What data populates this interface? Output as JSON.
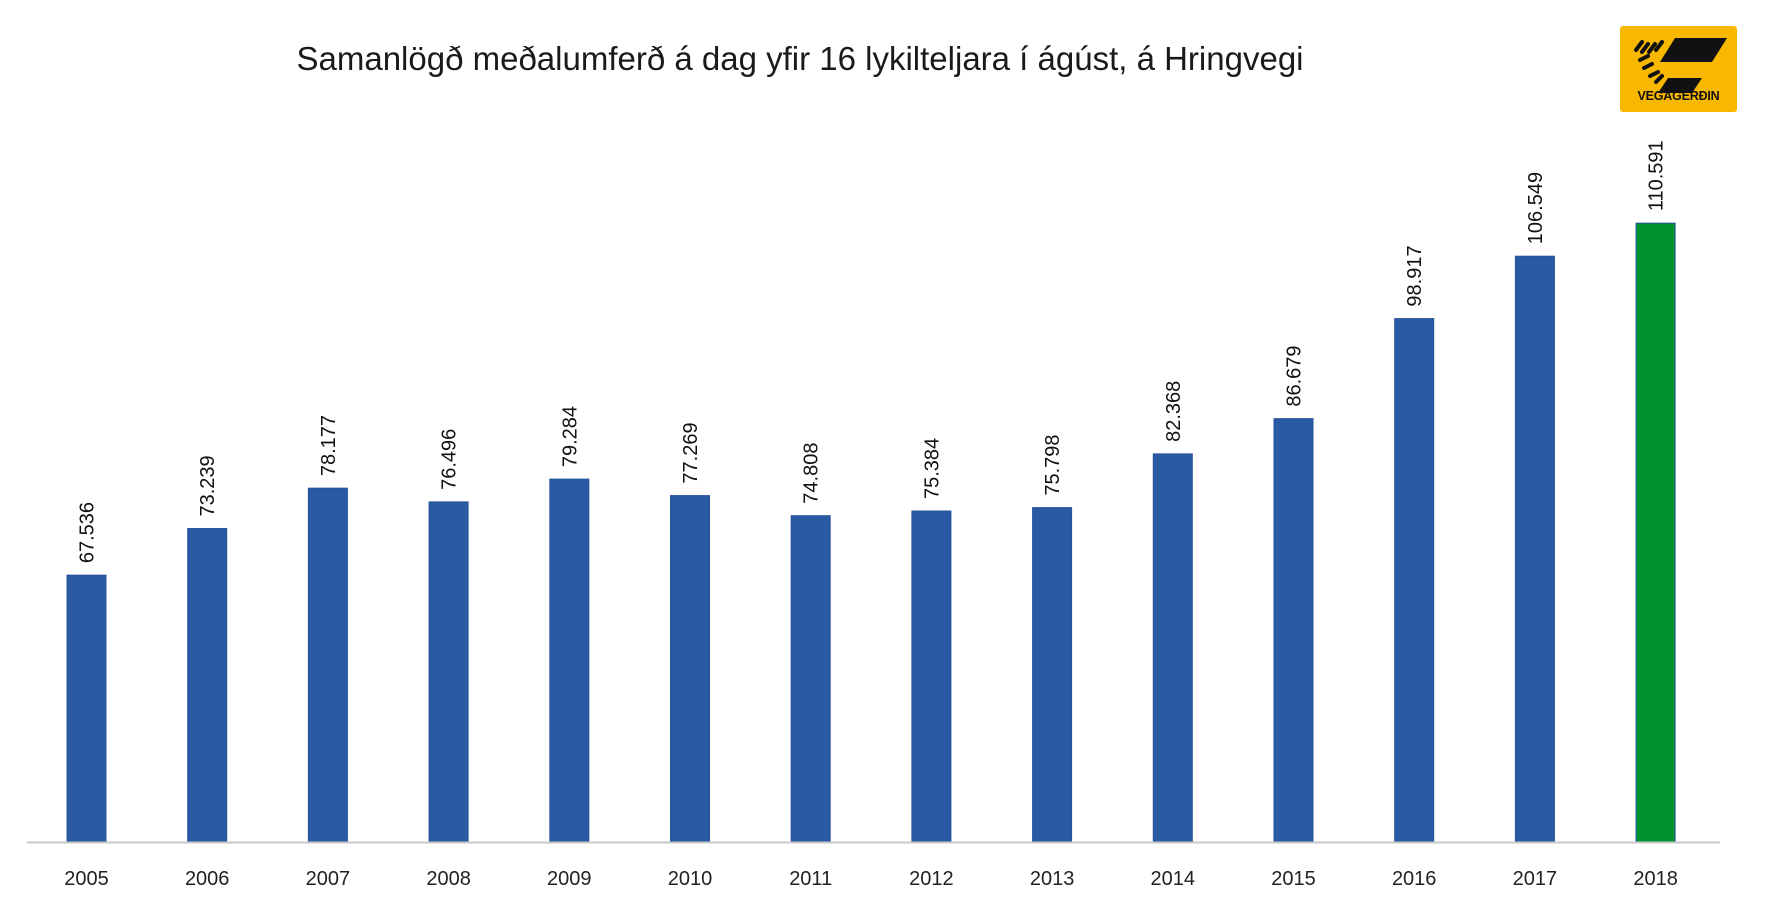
{
  "chart_data": {
    "type": "bar",
    "title": "Samanlögð meðalumferð á dag yfir 16 lykilteljara í  ágúst, á Hringvegi",
    "xlabel": "",
    "ylabel": "",
    "categories": [
      "2005",
      "2006",
      "2007",
      "2008",
      "2009",
      "2010",
      "2011",
      "2012",
      "2013",
      "2014",
      "2015",
      "2016",
      "2017",
      "2018"
    ],
    "values": [
      67.536,
      73.239,
      78.177,
      76.496,
      79.284,
      77.269,
      74.808,
      75.384,
      75.798,
      82.368,
      86.679,
      98.917,
      106.549,
      110.591
    ],
    "labels": [
      "67.536",
      "73.239",
      "78.177",
      "76.496",
      "79.284",
      "77.269",
      "74.808",
      "75.384",
      "75.798",
      "82.368",
      "86.679",
      "98.917",
      "106.549",
      "110.591"
    ],
    "ylim": [
      34.9,
      120
    ],
    "grid": false,
    "colors": {
      "default": "#2a5aa3",
      "highlight": "#00922e"
    },
    "highlight_index": 13
  },
  "logo": {
    "text": "VEGAGERÐIN",
    "color": "#f9b800"
  }
}
